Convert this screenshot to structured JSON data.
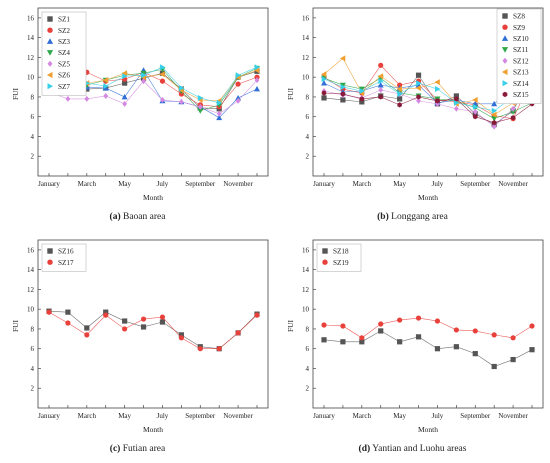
{
  "figure": {
    "panels": [
      {
        "letter": "(a)",
        "name": "Baoan area"
      },
      {
        "letter": "(b)",
        "name": "Longgang area"
      },
      {
        "letter": "(c)",
        "name": "Futian area"
      },
      {
        "letter": "(d)",
        "name": "Yantian and Luohu areas"
      }
    ]
  },
  "chart_data": [
    {
      "type": "line",
      "xlabel": "Month",
      "ylabel": "FUI",
      "ylim": [
        0,
        17
      ],
      "yticks": [
        2,
        4,
        6,
        8,
        10,
        12,
        14,
        16
      ],
      "categories": [
        "January",
        "February",
        "March",
        "April",
        "May",
        "June",
        "July",
        "August",
        "September",
        "October",
        "November",
        "December"
      ],
      "tick_labels": [
        "January",
        "March",
        "May",
        "July",
        "September",
        "November"
      ],
      "legend": "top-left",
      "series": [
        {
          "name": "SZ1",
          "color": "#555555",
          "marker": "square",
          "values": [
            11.0,
            9.4,
            8.8,
            8.9,
            9.4,
            9.9,
            10.4,
            8.8,
            6.9,
            6.8,
            10.0,
            10.6
          ]
        },
        {
          "name": "SZ2",
          "color": "#e8413c",
          "marker": "circle",
          "values": [
            10.8,
            10.8,
            10.5,
            9.6,
            9.8,
            10.5,
            9.6,
            8.3,
            7.2,
            7.0,
            9.3,
            10.0
          ]
        },
        {
          "name": "SZ3",
          "color": "#2f6fd6",
          "marker": "triangle-up",
          "values": [
            9.3,
            10.6,
            9.0,
            8.9,
            8.0,
            10.7,
            7.6,
            7.5,
            7.0,
            5.9,
            7.9,
            8.8
          ]
        },
        {
          "name": "SZ4",
          "color": "#2fa84a",
          "marker": "triangle-down",
          "values": [
            11.8,
            11.2,
            9.2,
            9.7,
            10.2,
            10.4,
            10.8,
            8.6,
            6.6,
            7.2,
            10.0,
            10.9
          ]
        },
        {
          "name": "SZ5",
          "color": "#d488e0",
          "marker": "diamond",
          "values": [
            8.5,
            7.8,
            7.8,
            8.1,
            7.3,
            9.6,
            7.7,
            7.5,
            7.0,
            6.3,
            7.6,
            9.7
          ]
        },
        {
          "name": "SZ6",
          "color": "#f0a030",
          "marker": "triangle-left",
          "values": [
            11.5,
            11.0,
            9.4,
            9.7,
            10.4,
            10.0,
            10.3,
            8.7,
            7.7,
            7.6,
            10.0,
            10.7
          ]
        },
        {
          "name": "SZ7",
          "color": "#38d0e8",
          "marker": "triangle-right",
          "values": [
            11.9,
            10.8,
            9.4,
            9.1,
            10.1,
            10.2,
            11.0,
            8.9,
            7.9,
            7.4,
            10.2,
            11.0
          ]
        }
      ]
    },
    {
      "type": "line",
      "xlabel": "Month",
      "ylabel": "FUI",
      "ylim": [
        0,
        17
      ],
      "yticks": [
        2,
        4,
        6,
        8,
        10,
        12,
        14,
        16
      ],
      "categories": [
        "January",
        "February",
        "March",
        "April",
        "May",
        "June",
        "July",
        "August",
        "September",
        "October",
        "November",
        "December"
      ],
      "tick_labels": [
        "January",
        "March",
        "May",
        "July",
        "September",
        "November"
      ],
      "legend": "top-right",
      "series": [
        {
          "name": "SZ8",
          "color": "#555555",
          "marker": "square",
          "values": [
            7.9,
            7.7,
            7.5,
            8.1,
            7.8,
            10.2,
            7.3,
            8.1,
            6.3,
            5.2,
            6.6,
            10.3
          ]
        },
        {
          "name": "SZ9",
          "color": "#e8413c",
          "marker": "circle",
          "values": [
            10.0,
            8.8,
            8.4,
            11.2,
            9.2,
            9.6,
            7.7,
            7.5,
            7.2,
            6.1,
            5.8,
            9.9
          ]
        },
        {
          "name": "SZ10",
          "color": "#2f6fd6",
          "marker": "triangle-up",
          "values": [
            9.4,
            8.5,
            8.6,
            9.2,
            8.9,
            9.2,
            7.4,
            7.7,
            7.3,
            7.3,
            9.0,
            9.3
          ]
        },
        {
          "name": "SZ11",
          "color": "#2fa84a",
          "marker": "triangle-down",
          "values": [
            9.9,
            9.2,
            8.8,
            9.9,
            8.4,
            8.1,
            7.8,
            7.6,
            6.9,
            5.8,
            6.5,
            7.4
          ]
        },
        {
          "name": "SZ12",
          "color": "#d488e0",
          "marker": "diamond",
          "values": [
            8.6,
            8.2,
            7.9,
            8.7,
            8.3,
            7.6,
            7.3,
            6.8,
            6.5,
            5.0,
            6.8,
            10.4
          ]
        },
        {
          "name": "SZ13",
          "color": "#f0a030",
          "marker": "triangle-left",
          "values": [
            10.3,
            11.9,
            8.4,
            10.1,
            8.8,
            8.9,
            9.5,
            7.3,
            7.7,
            6.2,
            7.4,
            9.0
          ]
        },
        {
          "name": "SZ14",
          "color": "#38d0e8",
          "marker": "triangle-right",
          "values": [
            9.8,
            9.0,
            8.6,
            9.6,
            8.3,
            9.4,
            8.8,
            7.4,
            7.0,
            6.6,
            8.0,
            9.2
          ]
        },
        {
          "name": "SZ15",
          "color": "#8a1a3a",
          "marker": "hexagon",
          "values": [
            8.4,
            8.3,
            7.8,
            8.0,
            7.2,
            8.0,
            7.6,
            7.8,
            6.0,
            5.4,
            5.9,
            7.3
          ]
        }
      ]
    },
    {
      "type": "line",
      "xlabel": "Month",
      "ylabel": "FUI",
      "ylim": [
        0,
        17
      ],
      "yticks": [
        2,
        4,
        6,
        8,
        10,
        12,
        14,
        16
      ],
      "categories": [
        "January",
        "February",
        "March",
        "April",
        "May",
        "June",
        "July",
        "August",
        "September",
        "October",
        "November",
        "December"
      ],
      "tick_labels": [
        "January",
        "March",
        "May",
        "July",
        "September",
        "November"
      ],
      "legend": "top-left",
      "series": [
        {
          "name": "SZ16",
          "color": "#555555",
          "marker": "square",
          "values": [
            9.8,
            9.7,
            8.1,
            9.7,
            8.8,
            8.2,
            8.7,
            7.4,
            6.2,
            6.0,
            7.6,
            9.5
          ]
        },
        {
          "name": "SZ17",
          "color": "#e8413c",
          "marker": "circle",
          "values": [
            9.7,
            8.6,
            7.4,
            9.4,
            8.0,
            9.0,
            9.2,
            7.1,
            6.0,
            6.0,
            7.6,
            9.4
          ]
        }
      ]
    },
    {
      "type": "line",
      "xlabel": "Month",
      "ylabel": "FUI",
      "ylim": [
        0,
        17
      ],
      "yticks": [
        2,
        4,
        6,
        8,
        10,
        12,
        14,
        16
      ],
      "categories": [
        "January",
        "February",
        "March",
        "April",
        "May",
        "June",
        "July",
        "August",
        "September",
        "October",
        "November",
        "December"
      ],
      "tick_labels": [
        "January",
        "March",
        "May",
        "July",
        "September",
        "November"
      ],
      "legend": "top-left",
      "series": [
        {
          "name": "SZ18",
          "color": "#555555",
          "marker": "square",
          "values": [
            6.9,
            6.7,
            6.7,
            7.8,
            6.7,
            7.2,
            6.0,
            6.2,
            5.5,
            4.2,
            4.9,
            5.9
          ]
        },
        {
          "name": "SZ19",
          "color": "#e8413c",
          "marker": "circle",
          "values": [
            8.4,
            8.3,
            7.1,
            8.5,
            8.9,
            9.1,
            8.8,
            7.9,
            7.8,
            7.4,
            7.1,
            8.3
          ]
        }
      ]
    }
  ]
}
